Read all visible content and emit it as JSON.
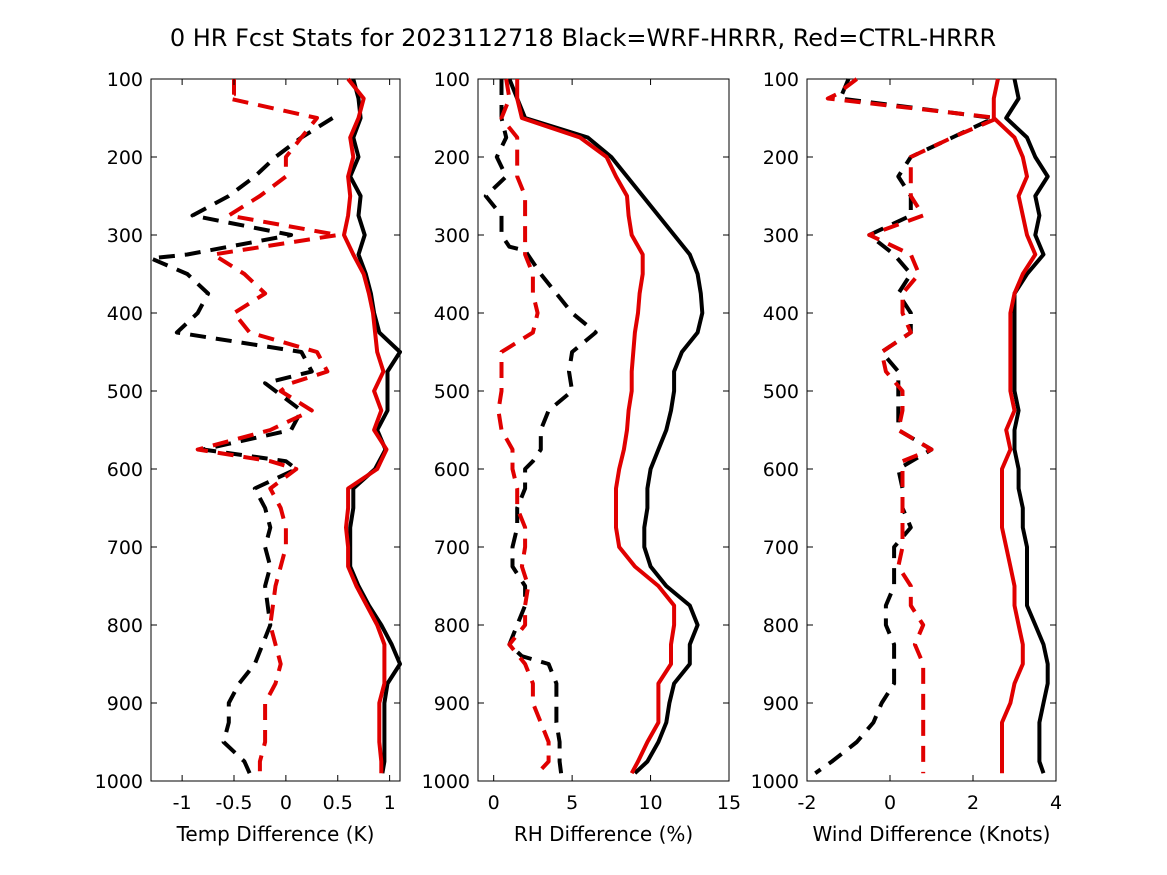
{
  "title": "0 HR Fcst Stats for 2023112718 Black=WRF-HRRR, Red=CTRL-HRRR",
  "colors": {
    "series_a": "#000000",
    "series_b": "#e00000",
    "axes": "#000000",
    "background": "#ffffff"
  },
  "chart_data": [
    {
      "type": "line",
      "xlabel": "Temp Difference (K)",
      "xlim": [
        -1.3,
        1.1
      ],
      "ylim": [
        100,
        1000
      ],
      "y_reversed": true,
      "xticks": [
        -1,
        -0.5,
        0,
        0.5,
        1
      ],
      "xtick_labels": [
        "-1",
        "-0.5",
        "0",
        "0.5",
        "1"
      ],
      "yticks": [
        100,
        200,
        300,
        400,
        500,
        600,
        700,
        800,
        900,
        1000
      ],
      "ytick_labels": [
        "100",
        "200",
        "300",
        "400",
        "500",
        "600",
        "700",
        "800",
        "900",
        "1000"
      ],
      "grid": false,
      "series": [
        {
          "color": "black",
          "style": "solid",
          "y": [
            100,
            125,
            150,
            175,
            200,
            225,
            250,
            275,
            300,
            325,
            350,
            375,
            400,
            425,
            450,
            475,
            500,
            525,
            550,
            575,
            600,
            625,
            650,
            675,
            700,
            725,
            750,
            775,
            800,
            825,
            850,
            875,
            900,
            925,
            950,
            975,
            990
          ],
          "x": [
            0.65,
            0.7,
            0.72,
            0.65,
            0.7,
            0.62,
            0.72,
            0.7,
            0.76,
            0.7,
            0.77,
            0.82,
            0.85,
            0.9,
            1.1,
            0.98,
            0.98,
            0.98,
            0.88,
            0.96,
            0.86,
            0.65,
            0.65,
            0.62,
            0.62,
            0.62,
            0.7,
            0.8,
            0.92,
            1.02,
            1.1,
            0.98,
            0.95,
            0.95,
            0.95,
            0.95,
            0.93
          ]
        },
        {
          "color": "red",
          "style": "solid",
          "y": [
            100,
            125,
            150,
            175,
            200,
            225,
            250,
            275,
            300,
            325,
            350,
            375,
            400,
            425,
            450,
            475,
            500,
            525,
            550,
            575,
            600,
            625,
            650,
            675,
            700,
            725,
            750,
            775,
            800,
            825,
            850,
            875,
            900,
            925,
            950,
            975,
            990
          ],
          "x": [
            0.6,
            0.75,
            0.7,
            0.62,
            0.65,
            0.6,
            0.62,
            0.6,
            0.56,
            0.65,
            0.75,
            0.8,
            0.84,
            0.86,
            0.88,
            0.94,
            0.85,
            0.92,
            0.85,
            0.97,
            0.88,
            0.6,
            0.6,
            0.58,
            0.6,
            0.6,
            0.68,
            0.78,
            0.88,
            0.95,
            0.95,
            0.95,
            0.9,
            0.9,
            0.9,
            0.92,
            0.92
          ]
        },
        {
          "color": "black",
          "style": "dashed",
          "y": [
            150,
            175,
            200,
            225,
            250,
            275,
            300,
            325,
            330,
            350,
            375,
            400,
            425,
            450,
            475,
            490,
            500,
            525,
            550,
            575,
            590,
            600,
            625,
            650,
            675,
            700,
            725,
            750,
            800,
            850,
            875,
            900,
            925,
            950,
            975,
            990
          ],
          "x": [
            0.45,
            0.15,
            -0.1,
            -0.3,
            -0.55,
            -0.9,
            0.05,
            -0.95,
            -1.3,
            -0.95,
            -0.75,
            -0.85,
            -1.05,
            0.15,
            0.25,
            -0.2,
            -0.1,
            0.15,
            0.05,
            -0.8,
            0.0,
            0.1,
            -0.3,
            -0.2,
            -0.15,
            -0.2,
            -0.15,
            -0.2,
            -0.15,
            -0.3,
            -0.45,
            -0.55,
            -0.55,
            -0.6,
            -0.4,
            -0.35
          ]
        },
        {
          "color": "red",
          "style": "dashed",
          "y": [
            100,
            120,
            125,
            150,
            175,
            200,
            225,
            250,
            275,
            300,
            325,
            350,
            375,
            400,
            425,
            450,
            475,
            490,
            500,
            525,
            550,
            575,
            590,
            600,
            625,
            650,
            675,
            700,
            750,
            800,
            850,
            875,
            900,
            925,
            950,
            975,
            990
          ],
          "x": [
            -0.5,
            -0.5,
            -0.55,
            0.3,
            0.15,
            0.0,
            0.0,
            -0.25,
            -0.55,
            0.5,
            -0.7,
            -0.4,
            -0.2,
            -0.5,
            -0.35,
            0.3,
            0.4,
            0.05,
            -0.05,
            0.25,
            -0.15,
            -0.85,
            -0.15,
            0.1,
            -0.15,
            -0.05,
            0.0,
            0.0,
            -0.1,
            -0.15,
            -0.05,
            -0.1,
            -0.2,
            -0.2,
            -0.2,
            -0.25,
            -0.25
          ]
        }
      ]
    },
    {
      "type": "line",
      "xlabel": "RH Difference (%)",
      "xlim": [
        -1,
        15
      ],
      "ylim": [
        100,
        1000
      ],
      "y_reversed": true,
      "xticks": [
        0,
        5,
        10,
        15
      ],
      "xtick_labels": [
        "0",
        "5",
        "10",
        "15"
      ],
      "yticks": [
        100,
        200,
        300,
        400,
        500,
        600,
        700,
        800,
        900,
        1000
      ],
      "ytick_labels": [
        "100",
        "200",
        "300",
        "400",
        "500",
        "600",
        "700",
        "800",
        "900",
        "1000"
      ],
      "grid": false,
      "series": [
        {
          "color": "black",
          "style": "solid",
          "y": [
            100,
            125,
            150,
            175,
            200,
            225,
            250,
            275,
            300,
            325,
            350,
            375,
            400,
            425,
            450,
            475,
            500,
            525,
            550,
            575,
            600,
            625,
            650,
            675,
            700,
            725,
            750,
            775,
            800,
            825,
            850,
            875,
            900,
            925,
            950,
            975,
            990
          ],
          "x": [
            1.0,
            1.5,
            2.0,
            6.0,
            7.5,
            8.5,
            9.5,
            10.5,
            11.5,
            12.5,
            13.0,
            13.2,
            13.3,
            13.0,
            12.0,
            11.5,
            11.5,
            11.3,
            11.0,
            10.5,
            10.0,
            9.8,
            9.8,
            9.6,
            9.6,
            10.0,
            11.0,
            12.5,
            13.0,
            12.5,
            12.5,
            11.5,
            11.2,
            11.0,
            10.5,
            9.8,
            9.0
          ]
        },
        {
          "color": "red",
          "style": "solid",
          "y": [
            100,
            125,
            150,
            175,
            200,
            225,
            250,
            275,
            300,
            325,
            350,
            375,
            400,
            425,
            450,
            475,
            500,
            525,
            550,
            575,
            600,
            625,
            650,
            675,
            700,
            725,
            750,
            775,
            800,
            825,
            850,
            875,
            900,
            925,
            950,
            975,
            990
          ],
          "x": [
            1.5,
            1.5,
            1.8,
            5.5,
            7.2,
            7.8,
            8.5,
            8.6,
            8.8,
            9.5,
            9.5,
            9.3,
            9.2,
            9.0,
            8.9,
            8.8,
            8.8,
            8.6,
            8.5,
            8.3,
            8.0,
            7.8,
            7.8,
            7.8,
            8.0,
            9.0,
            10.5,
            11.5,
            11.5,
            11.3,
            11.3,
            10.5,
            10.5,
            10.5,
            9.8,
            9.2,
            8.8
          ]
        },
        {
          "color": "black",
          "style": "dashed",
          "y": [
            100,
            125,
            150,
            175,
            200,
            225,
            250,
            275,
            300,
            315,
            320,
            350,
            375,
            400,
            425,
            450,
            475,
            500,
            525,
            550,
            575,
            590,
            600,
            625,
            650,
            675,
            700,
            725,
            750,
            775,
            800,
            825,
            840,
            850,
            875,
            900,
            925,
            950,
            975,
            990
          ],
          "x": [
            0.5,
            0.5,
            0.5,
            0.8,
            0.2,
            0.8,
            -0.5,
            0.5,
            0.5,
            1.0,
            2.0,
            3.0,
            4.0,
            5.0,
            6.5,
            5.0,
            4.8,
            5.0,
            3.5,
            3.0,
            3.0,
            2.5,
            2.0,
            2.0,
            1.5,
            1.5,
            1.2,
            1.2,
            2.0,
            2.0,
            1.5,
            1.0,
            1.8,
            3.5,
            4.0,
            4.0,
            4.0,
            4.2,
            4.2,
            4.3
          ]
        },
        {
          "color": "red",
          "style": "dashed",
          "y": [
            100,
            125,
            150,
            175,
            200,
            225,
            250,
            275,
            300,
            325,
            350,
            375,
            400,
            425,
            450,
            475,
            500,
            525,
            550,
            575,
            600,
            625,
            650,
            675,
            700,
            725,
            750,
            775,
            800,
            825,
            850,
            875,
            900,
            925,
            950,
            975,
            990
          ],
          "x": [
            0.8,
            1.0,
            0.5,
            1.5,
            1.5,
            1.5,
            2.0,
            2.0,
            2.0,
            2.0,
            2.5,
            2.5,
            2.8,
            2.5,
            0.5,
            0.5,
            0.5,
            0.3,
            0.5,
            1.2,
            1.2,
            1.5,
            1.5,
            2.0,
            2.0,
            1.8,
            2.2,
            2.0,
            2.0,
            1.0,
            2.0,
            2.5,
            2.5,
            3.0,
            3.5,
            3.5,
            2.8
          ]
        }
      ]
    },
    {
      "type": "line",
      "xlabel": "Wind Difference (Knots)",
      "xlim": [
        -2,
        4
      ],
      "ylim": [
        100,
        1000
      ],
      "y_reversed": true,
      "xticks": [
        -2,
        0,
        2,
        4
      ],
      "xtick_labels": [
        "-2",
        "0",
        "2",
        "4"
      ],
      "yticks": [
        100,
        200,
        300,
        400,
        500,
        600,
        700,
        800,
        900,
        1000
      ],
      "ytick_labels": [
        "100",
        "200",
        "300",
        "400",
        "500",
        "600",
        "700",
        "800",
        "900",
        "1000"
      ],
      "grid": false,
      "series": [
        {
          "color": "black",
          "style": "solid",
          "y": [
            100,
            125,
            150,
            175,
            200,
            225,
            250,
            275,
            300,
            325,
            350,
            375,
            400,
            425,
            450,
            475,
            500,
            525,
            550,
            575,
            600,
            625,
            650,
            675,
            700,
            725,
            750,
            775,
            800,
            825,
            850,
            875,
            900,
            925,
            950,
            975,
            990
          ],
          "x": [
            3.0,
            3.1,
            2.8,
            3.3,
            3.5,
            3.8,
            3.5,
            3.6,
            3.5,
            3.7,
            3.3,
            3.0,
            3.0,
            3.0,
            3.0,
            3.0,
            3.0,
            3.1,
            3.0,
            3.0,
            3.1,
            3.1,
            3.2,
            3.2,
            3.3,
            3.3,
            3.3,
            3.3,
            3.5,
            3.7,
            3.8,
            3.8,
            3.7,
            3.6,
            3.6,
            3.6,
            3.7
          ]
        },
        {
          "color": "red",
          "style": "solid",
          "y": [
            100,
            125,
            150,
            175,
            200,
            225,
            250,
            275,
            300,
            325,
            350,
            375,
            400,
            425,
            450,
            475,
            500,
            525,
            550,
            575,
            600,
            625,
            650,
            675,
            700,
            725,
            750,
            775,
            800,
            825,
            850,
            875,
            900,
            925,
            950,
            975,
            990
          ],
          "x": [
            2.6,
            2.5,
            2.5,
            3.0,
            3.2,
            3.3,
            3.1,
            3.2,
            3.3,
            3.5,
            3.2,
            3.0,
            2.9,
            2.9,
            2.9,
            2.9,
            2.9,
            3.0,
            2.8,
            2.9,
            2.7,
            2.7,
            2.7,
            2.7,
            2.8,
            2.9,
            3.0,
            3.0,
            3.1,
            3.2,
            3.2,
            3.0,
            2.9,
            2.7,
            2.7,
            2.7,
            2.7
          ]
        },
        {
          "color": "black",
          "style": "dashed",
          "y": [
            100,
            125,
            150,
            175,
            200,
            225,
            250,
            275,
            300,
            325,
            350,
            375,
            400,
            425,
            450,
            475,
            500,
            525,
            550,
            575,
            600,
            625,
            650,
            675,
            700,
            725,
            750,
            775,
            800,
            825,
            850,
            875,
            900,
            925,
            950,
            975,
            990
          ],
          "x": [
            -1.0,
            -1.2,
            2.5,
            1.5,
            0.5,
            0.2,
            0.5,
            0.5,
            -0.5,
            0.1,
            0.5,
            0.2,
            0.5,
            0.5,
            -0.2,
            0.2,
            0.2,
            0.2,
            0.2,
            1.0,
            0.2,
            0.3,
            0.3,
            0.5,
            0.1,
            0.1,
            0.1,
            -0.1,
            -0.1,
            0.1,
            0.1,
            0.1,
            -0.2,
            -0.4,
            -0.8,
            -1.4,
            -1.8
          ]
        },
        {
          "color": "red",
          "style": "dashed",
          "y": [
            100,
            120,
            125,
            150,
            175,
            200,
            225,
            250,
            275,
            300,
            325,
            350,
            375,
            400,
            425,
            450,
            475,
            500,
            525,
            550,
            575,
            590,
            600,
            625,
            650,
            675,
            700,
            725,
            750,
            775,
            800,
            825,
            850,
            875,
            900,
            925,
            950,
            975,
            990
          ],
          "x": [
            -0.8,
            -1.3,
            -1.5,
            2.6,
            1.5,
            0.5,
            0.5,
            0.5,
            0.8,
            -0.5,
            0.5,
            0.7,
            0.3,
            0.3,
            0.5,
            -0.2,
            -0.1,
            0.3,
            0.3,
            0.2,
            1.0,
            0.3,
            0.3,
            0.3,
            0.3,
            0.3,
            0.3,
            0.2,
            0.5,
            0.5,
            0.8,
            0.6,
            0.8,
            0.8,
            0.8,
            0.8,
            0.8,
            0.8,
            0.8
          ]
        }
      ]
    }
  ]
}
